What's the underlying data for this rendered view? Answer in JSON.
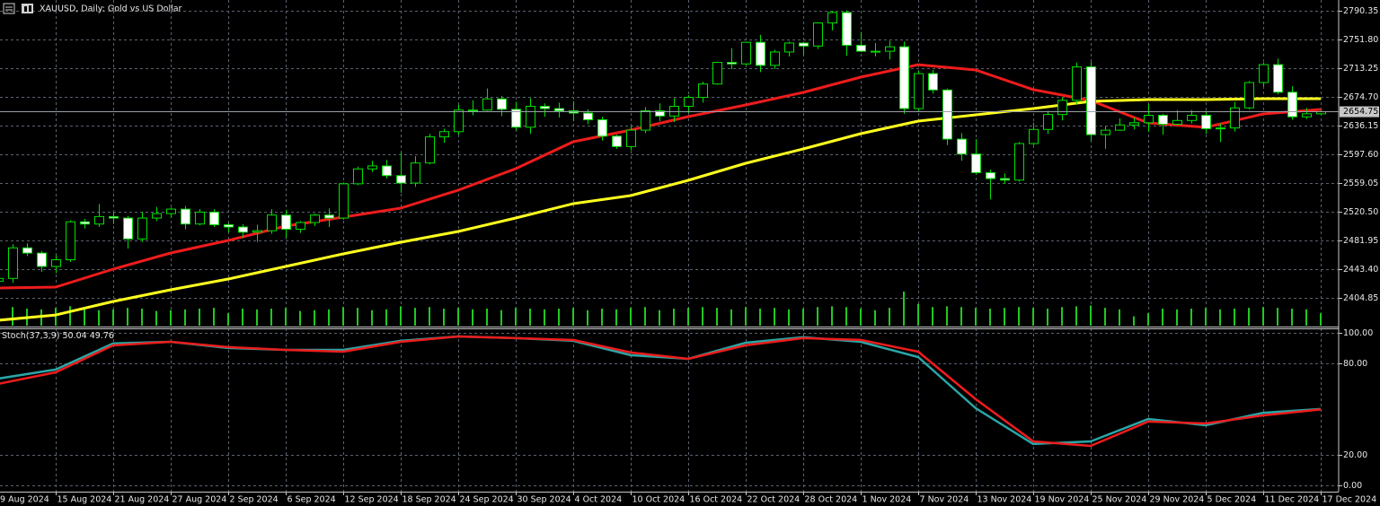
{
  "chart_data": {
    "type": "candlestick",
    "title": "XAUUSD, Daily: Gold vs US Dollar",
    "categories": [
      "9 Aug 2024",
      null,
      null,
      null,
      "15 Aug 2024",
      null,
      null,
      null,
      "21 Aug 2024",
      null,
      null,
      null,
      "27 Aug 2024",
      null,
      null,
      null,
      "2 Sep 2024",
      null,
      null,
      null,
      "6 Sep 2024",
      null,
      null,
      null,
      "12 Sep 2024",
      null,
      null,
      null,
      "18 Sep 2024",
      null,
      null,
      null,
      "24 Sep 2024",
      null,
      null,
      null,
      "30 Sep 2024",
      null,
      null,
      null,
      "4 Oct 2024",
      null,
      null,
      null,
      "10 Oct 2024",
      null,
      null,
      null,
      "16 Oct 2024",
      null,
      null,
      null,
      "22 Oct 2024",
      null,
      null,
      null,
      "28 Oct 2024",
      null,
      null,
      null,
      "1 Nov 2024",
      null,
      null,
      null,
      "7 Nov 2024",
      null,
      null,
      null,
      "13 Nov 2024",
      null,
      null,
      null,
      "19 Nov 2024",
      null,
      null,
      null,
      "25 Nov 2024",
      null,
      null,
      null,
      "29 Nov 2024",
      null,
      null,
      null,
      "5 Dec 2024",
      null,
      null,
      null,
      "11 Dec 2024",
      null,
      null,
      null,
      "17 Dec 2024"
    ],
    "open": [
      2427,
      2431,
      2472,
      2465,
      2447,
      2456,
      2507,
      2504,
      2514,
      2512,
      2484,
      2512,
      2518,
      2524,
      2504,
      2520,
      2503,
      2500,
      2493,
      2495,
      2516,
      2497,
      2506,
      2516,
      2512,
      2558,
      2578,
      2582,
      2569,
      2559,
      2586,
      2621,
      2628,
      2657,
      2657,
      2672,
      2658,
      2634,
      2662,
      2659,
      2656,
      2653,
      2644,
      2622,
      2608,
      2630,
      2656,
      2649,
      2662,
      2674,
      2692,
      2721,
      2719,
      2748,
      2717,
      2735,
      2747,
      2743,
      2774,
      2788,
      2744,
      2736,
      2736,
      2742,
      2659,
      2706,
      2684,
      2618,
      2598,
      2573,
      2565,
      2563,
      2612,
      2631,
      2651,
      2670,
      2715,
      2624,
      2630,
      2637,
      2640,
      2650,
      2638,
      2643,
      2650,
      2632,
      2633,
      2660,
      2694,
      2718,
      2681,
      2648,
      2652
    ],
    "high": [
      2438,
      2477,
      2478,
      2468,
      2462,
      2509,
      2511,
      2531,
      2520,
      2515,
      2520,
      2527,
      2526,
      2528,
      2524,
      2524,
      2505,
      2504,
      2503,
      2524,
      2523,
      2508,
      2518,
      2525,
      2560,
      2581,
      2589,
      2590,
      2600,
      2595,
      2625,
      2632,
      2664,
      2670,
      2686,
      2676,
      2668,
      2673,
      2666,
      2667,
      2669,
      2658,
      2648,
      2624,
      2636,
      2661,
      2666,
      2673,
      2677,
      2695,
      2722,
      2740,
      2749,
      2758,
      2738,
      2749,
      2749,
      2775,
      2790,
      2791,
      2762,
      2747,
      2750,
      2749,
      2710,
      2711,
      2686,
      2626,
      2618,
      2577,
      2572,
      2614,
      2640,
      2656,
      2674,
      2721,
      2722,
      2635,
      2646,
      2647,
      2665,
      2652,
      2657,
      2657,
      2656,
      2639,
      2668,
      2696,
      2721,
      2726,
      2689,
      2660,
      2657
    ],
    "low": [
      2420,
      2425,
      2461,
      2440,
      2438,
      2453,
      2498,
      2500,
      2504,
      2471,
      2480,
      2508,
      2512,
      2497,
      2502,
      2500,
      2493,
      2485,
      2480,
      2491,
      2485,
      2492,
      2501,
      2500,
      2510,
      2556,
      2574,
      2565,
      2546,
      2554,
      2584,
      2613,
      2624,
      2650,
      2656,
      2649,
      2630,
      2625,
      2648,
      2647,
      2642,
      2638,
      2616,
      2605,
      2603,
      2626,
      2642,
      2641,
      2653,
      2667,
      2691,
      2712,
      2717,
      2708,
      2712,
      2729,
      2731,
      2739,
      2764,
      2730,
      2735,
      2729,
      2725,
      2652,
      2655,
      2679,
      2610,
      2589,
      2571,
      2537,
      2558,
      2561,
      2610,
      2625,
      2643,
      2665,
      2616,
      2605,
      2629,
      2631,
      2628,
      2624,
      2637,
      2639,
      2625,
      2614,
      2628,
      2658,
      2689,
      2678,
      2644,
      2645,
      2650
    ],
    "close": [
      2431,
      2472,
      2465,
      2447,
      2456,
      2507,
      2504,
      2514,
      2512,
      2484,
      2512,
      2518,
      2524,
      2504,
      2520,
      2503,
      2500,
      2493,
      2495,
      2516,
      2497,
      2506,
      2516,
      2512,
      2558,
      2578,
      2582,
      2569,
      2559,
      2586,
      2621,
      2628,
      2657,
      2657,
      2672,
      2658,
      2634,
      2662,
      2659,
      2656,
      2653,
      2644,
      2622,
      2608,
      2630,
      2656,
      2649,
      2662,
      2674,
      2692,
      2721,
      2719,
      2748,
      2717,
      2735,
      2747,
      2743,
      2774,
      2788,
      2744,
      2736,
      2736,
      2742,
      2659,
      2706,
      2684,
      2618,
      2598,
      2573,
      2565,
      2563,
      2612,
      2631,
      2651,
      2670,
      2715,
      2624,
      2630,
      2637,
      2640,
      2650,
      2638,
      2643,
      2650,
      2632,
      2633,
      2660,
      2694,
      2718,
      2681,
      2648,
      2652,
      2654.75
    ],
    "volume": [
      100,
      120,
      110,
      105,
      115,
      125,
      110,
      100,
      105,
      115,
      110,
      95,
      100,
      105,
      110,
      115,
      80,
      110,
      105,
      110,
      115,
      95,
      100,
      105,
      120,
      115,
      100,
      105,
      125,
      115,
      120,
      110,
      115,
      105,
      110,
      100,
      115,
      110,
      105,
      110,
      115,
      100,
      110,
      105,
      115,
      120,
      100,
      110,
      115,
      120,
      115,
      105,
      120,
      110,
      115,
      105,
      110,
      120,
      125,
      120,
      110,
      100,
      115,
      220,
      140,
      120,
      125,
      120,
      115,
      110,
      115,
      120,
      115,
      110,
      120,
      125,
      130,
      115,
      105,
      60,
      80,
      110,
      105,
      110,
      115,
      105,
      110,
      115,
      120,
      115,
      110,
      105,
      80
    ],
    "current_price": 2654.75,
    "ylim": [
      2366.3,
      2804.8
    ],
    "yticks": [
      2404.85,
      {
        "value": 2443.4,
        "label": "2443.40"
      },
      2481.95,
      {
        "value": 2520.5,
        "label": "2520.50"
      },
      2559.05,
      {
        "value": 2597.6,
        "label": "2597.60"
      },
      2636.15,
      {
        "value": 2674.7,
        "label": "2674.70"
      },
      2713.25,
      {
        "value": 2751.8,
        "label": "2751.80"
      },
      2790.35
    ],
    "grid": true,
    "bull_color": "#000000",
    "bear_color": "#ffffff",
    "wick_color": "#00e000",
    "volume_color": "#22c822",
    "moving_averages": [
      {
        "color": "#ee1c1c",
        "values": [
          2418.1,
          2419.3,
          2443.4,
          2465.1,
          2481.9,
          2501.2,
          2513.3,
          2525.3,
          2549.4,
          2578.3,
          2614.5,
          2630.1,
          2648.2,
          2663.9,
          2680.7,
          2701.2,
          2718,
          2710.8,
          2684.4,
          2669.9,
          2639.8,
          2633.8,
          2651.8,
          2657.8
        ]
      },
      {
        "color": "#ffff1e",
        "values": [
          2374.7,
          2381.9,
          2400,
          2415.7,
          2430.1,
          2447,
          2463.9,
          2479.5,
          2494,
          2512.1,
          2531.4,
          2542.2,
          2562.7,
          2585.6,
          2604.8,
          2625.3,
          2642.2,
          2650.6,
          2659,
          2668.7,
          2671.1,
          2671.1,
          2672.3,
          2672.3
        ]
      }
    ],
    "indicator": {
      "title": "Stoch(37,3,9)",
      "ylim": [
        -4.1,
        102.9
      ],
      "yticks": [
        {
          "value": 0,
          "label": "0.00"
        },
        {
          "value": 20,
          "label": "20.00"
        },
        {
          "value": 80,
          "label": "80.00"
        },
        {
          "value": 100,
          "label": "100.00"
        }
      ],
      "series": [
        {
          "color": "#2aa6a6",
          "values": [
            70,
            75.9,
            93,
            94.1,
            90,
            88.8,
            88.8,
            94.7,
            97.6,
            96.5,
            94.7,
            85.3,
            82.9,
            93.5,
            97.1,
            94.1,
            84.1,
            50.6,
            27.1,
            28.8,
            43.5,
            39.4,
            47.6,
            50.04
          ]
        },
        {
          "color": "#ee1c1c",
          "values": [
            66.5,
            74.1,
            91.8,
            94.1,
            90.6,
            88.8,
            87.6,
            94.1,
            97.6,
            96.5,
            95.3,
            87.1,
            82.9,
            91.8,
            96.5,
            95.3,
            87.6,
            56.5,
            28.8,
            25.9,
            41.8,
            40.6,
            45.9,
            49.76
          ]
        }
      ]
    }
  }
}
